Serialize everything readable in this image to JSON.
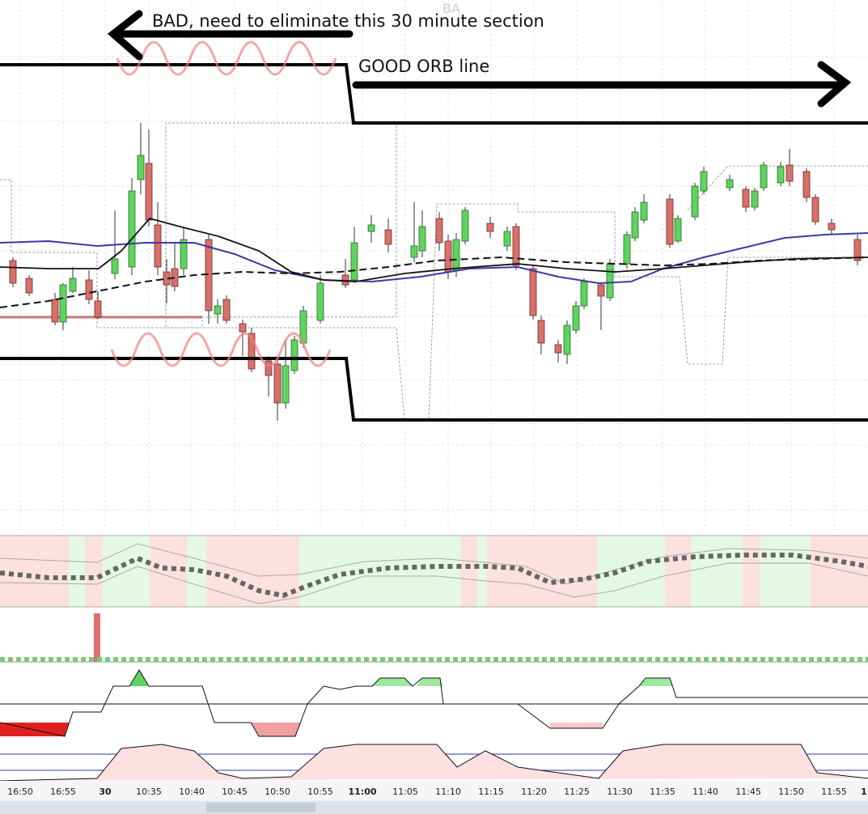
{
  "watermark": "BA",
  "annotations": {
    "bad": "BAD, need to eliminate this 30 minute section",
    "good": "GOOD ORB line"
  },
  "time_axis": {
    "labels": [
      "16:50",
      "16:55",
      "30",
      "10:35",
      "10:40",
      "10:45",
      "10:50",
      "10:55",
      "11:00",
      "11:05",
      "11:10",
      "11:15",
      "11:20",
      "11:25",
      "11:30",
      "11:35",
      "11:40",
      "11:45",
      "11:50",
      "11:55",
      "1"
    ]
  }
}
